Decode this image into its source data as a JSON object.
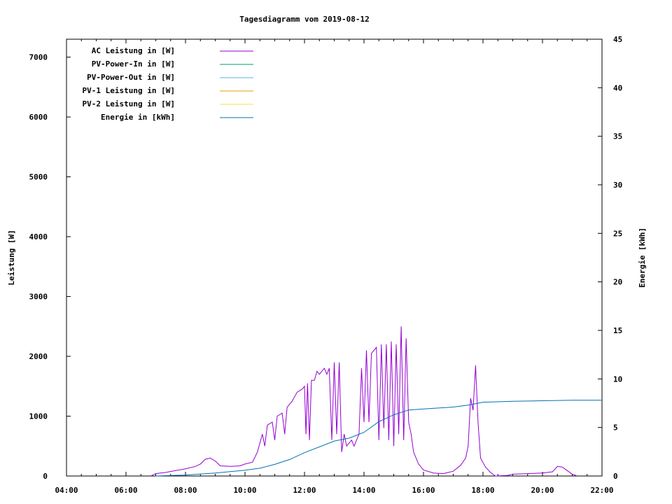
{
  "chart_data": {
    "type": "line",
    "title": "Tagesdiagramm vom 2019-08-12",
    "ylabel": "Leistung [W]",
    "y2label": "Energie [kWh]",
    "xlim": [
      "04:00",
      "22:00"
    ],
    "ylim": [
      0,
      7300
    ],
    "y2lim": [
      0,
      45
    ],
    "x_ticks": [
      "04:00",
      "06:00",
      "08:00",
      "10:00",
      "12:00",
      "14:00",
      "16:00",
      "18:00",
      "20:00",
      "22:00"
    ],
    "y_ticks": [
      0,
      1000,
      2000,
      3000,
      4000,
      5000,
      6000,
      7000
    ],
    "y2_ticks": [
      0,
      5,
      10,
      15,
      20,
      25,
      30,
      35,
      40,
      45
    ],
    "legend_position": "top-left",
    "legend": [
      {
        "label": "AC Leistung in [W]",
        "color": "#9400d3"
      },
      {
        "label": "PV-Power-In in [W]",
        "color": "#009e73"
      },
      {
        "label": "PV-Power-Out in [W]",
        "color": "#56b4e9"
      },
      {
        "label": "PV-1 Leistung in [W]",
        "color": "#e69f00"
      },
      {
        "label": "PV-2 Leistung in [W]",
        "color": "#f0e442"
      },
      {
        "label": "Energie in [kWh]",
        "color": "#0072b2"
      }
    ],
    "series": [
      {
        "name": "AC Leistung in [W]",
        "color": "#9400d3",
        "axis": "left",
        "points": [
          [
            "06:50",
            0
          ],
          [
            "07:00",
            40
          ],
          [
            "07:20",
            60
          ],
          [
            "07:40",
            90
          ],
          [
            "08:00",
            120
          ],
          [
            "08:20",
            160
          ],
          [
            "08:30",
            200
          ],
          [
            "08:40",
            280
          ],
          [
            "08:50",
            300
          ],
          [
            "09:00",
            250
          ],
          [
            "09:10",
            170
          ],
          [
            "09:30",
            160
          ],
          [
            "09:50",
            170
          ],
          [
            "10:00",
            200
          ],
          [
            "10:15",
            230
          ],
          [
            "10:25",
            400
          ],
          [
            "10:35",
            700
          ],
          [
            "10:40",
            500
          ],
          [
            "10:45",
            850
          ],
          [
            "10:55",
            900
          ],
          [
            "11:00",
            600
          ],
          [
            "11:05",
            1000
          ],
          [
            "11:15",
            1050
          ],
          [
            "11:20",
            700
          ],
          [
            "11:25",
            1150
          ],
          [
            "11:35",
            1250
          ],
          [
            "11:45",
            1400
          ],
          [
            "11:55",
            1450
          ],
          [
            "12:00",
            1500
          ],
          [
            "12:03",
            700
          ],
          [
            "12:06",
            1550
          ],
          [
            "12:10",
            600
          ],
          [
            "12:14",
            1600
          ],
          [
            "12:20",
            1600
          ],
          [
            "12:25",
            1750
          ],
          [
            "12:30",
            1700
          ],
          [
            "12:40",
            1800
          ],
          [
            "12:45",
            1700
          ],
          [
            "12:50",
            1800
          ],
          [
            "12:55",
            600
          ],
          [
            "13:00",
            1900
          ],
          [
            "13:05",
            700
          ],
          [
            "13:10",
            1900
          ],
          [
            "13:15",
            400
          ],
          [
            "13:20",
            700
          ],
          [
            "13:25",
            500
          ],
          [
            "13:35",
            600
          ],
          [
            "13:40",
            500
          ],
          [
            "13:50",
            700
          ],
          [
            "13:55",
            1800
          ],
          [
            "14:00",
            900
          ],
          [
            "14:05",
            2100
          ],
          [
            "14:10",
            900
          ],
          [
            "14:15",
            2050
          ],
          [
            "14:20",
            2100
          ],
          [
            "14:25",
            2150
          ],
          [
            "14:30",
            600
          ],
          [
            "14:35",
            2200
          ],
          [
            "14:40",
            800
          ],
          [
            "14:45",
            2200
          ],
          [
            "14:50",
            600
          ],
          [
            "14:55",
            2250
          ],
          [
            "15:00",
            500
          ],
          [
            "15:05",
            2200
          ],
          [
            "15:10",
            700
          ],
          [
            "15:15",
            2500
          ],
          [
            "15:20",
            600
          ],
          [
            "15:25",
            2300
          ],
          [
            "15:30",
            900
          ],
          [
            "15:35",
            700
          ],
          [
            "15:40",
            400
          ],
          [
            "15:50",
            200
          ],
          [
            "16:00",
            100
          ],
          [
            "16:20",
            50
          ],
          [
            "16:40",
            40
          ],
          [
            "17:00",
            80
          ],
          [
            "17:15",
            180
          ],
          [
            "17:25",
            300
          ],
          [
            "17:30",
            500
          ],
          [
            "17:35",
            1300
          ],
          [
            "17:40",
            1100
          ],
          [
            "17:45",
            1850
          ],
          [
            "17:50",
            900
          ],
          [
            "17:55",
            300
          ],
          [
            "18:05",
            150
          ],
          [
            "18:15",
            60
          ],
          [
            "18:25",
            0
          ],
          [
            "18:50",
            10
          ],
          [
            "19:00",
            30
          ],
          [
            "19:30",
            40
          ],
          [
            "20:00",
            50
          ],
          [
            "20:20",
            70
          ],
          [
            "20:30",
            160
          ],
          [
            "20:40",
            150
          ],
          [
            "20:50",
            90
          ],
          [
            "21:00",
            30
          ],
          [
            "21:10",
            0
          ]
        ]
      },
      {
        "name": "Energie in [kWh]",
        "color": "#0072b2",
        "axis": "right",
        "points": [
          [
            "07:00",
            0
          ],
          [
            "08:00",
            0.1
          ],
          [
            "09:00",
            0.3
          ],
          [
            "10:00",
            0.6
          ],
          [
            "10:30",
            0.8
          ],
          [
            "11:00",
            1.2
          ],
          [
            "11:30",
            1.7
          ],
          [
            "12:00",
            2.4
          ],
          [
            "12:30",
            3.0
          ],
          [
            "13:00",
            3.6
          ],
          [
            "13:30",
            3.9
          ],
          [
            "14:00",
            4.5
          ],
          [
            "14:30",
            5.6
          ],
          [
            "15:00",
            6.3
          ],
          [
            "15:30",
            6.8
          ],
          [
            "16:00",
            6.9
          ],
          [
            "16:30",
            7.0
          ],
          [
            "17:00",
            7.1
          ],
          [
            "17:30",
            7.3
          ],
          [
            "18:00",
            7.6
          ],
          [
            "19:00",
            7.7
          ],
          [
            "20:00",
            7.75
          ],
          [
            "21:00",
            7.8
          ],
          [
            "22:00",
            7.8
          ]
        ]
      }
    ]
  }
}
